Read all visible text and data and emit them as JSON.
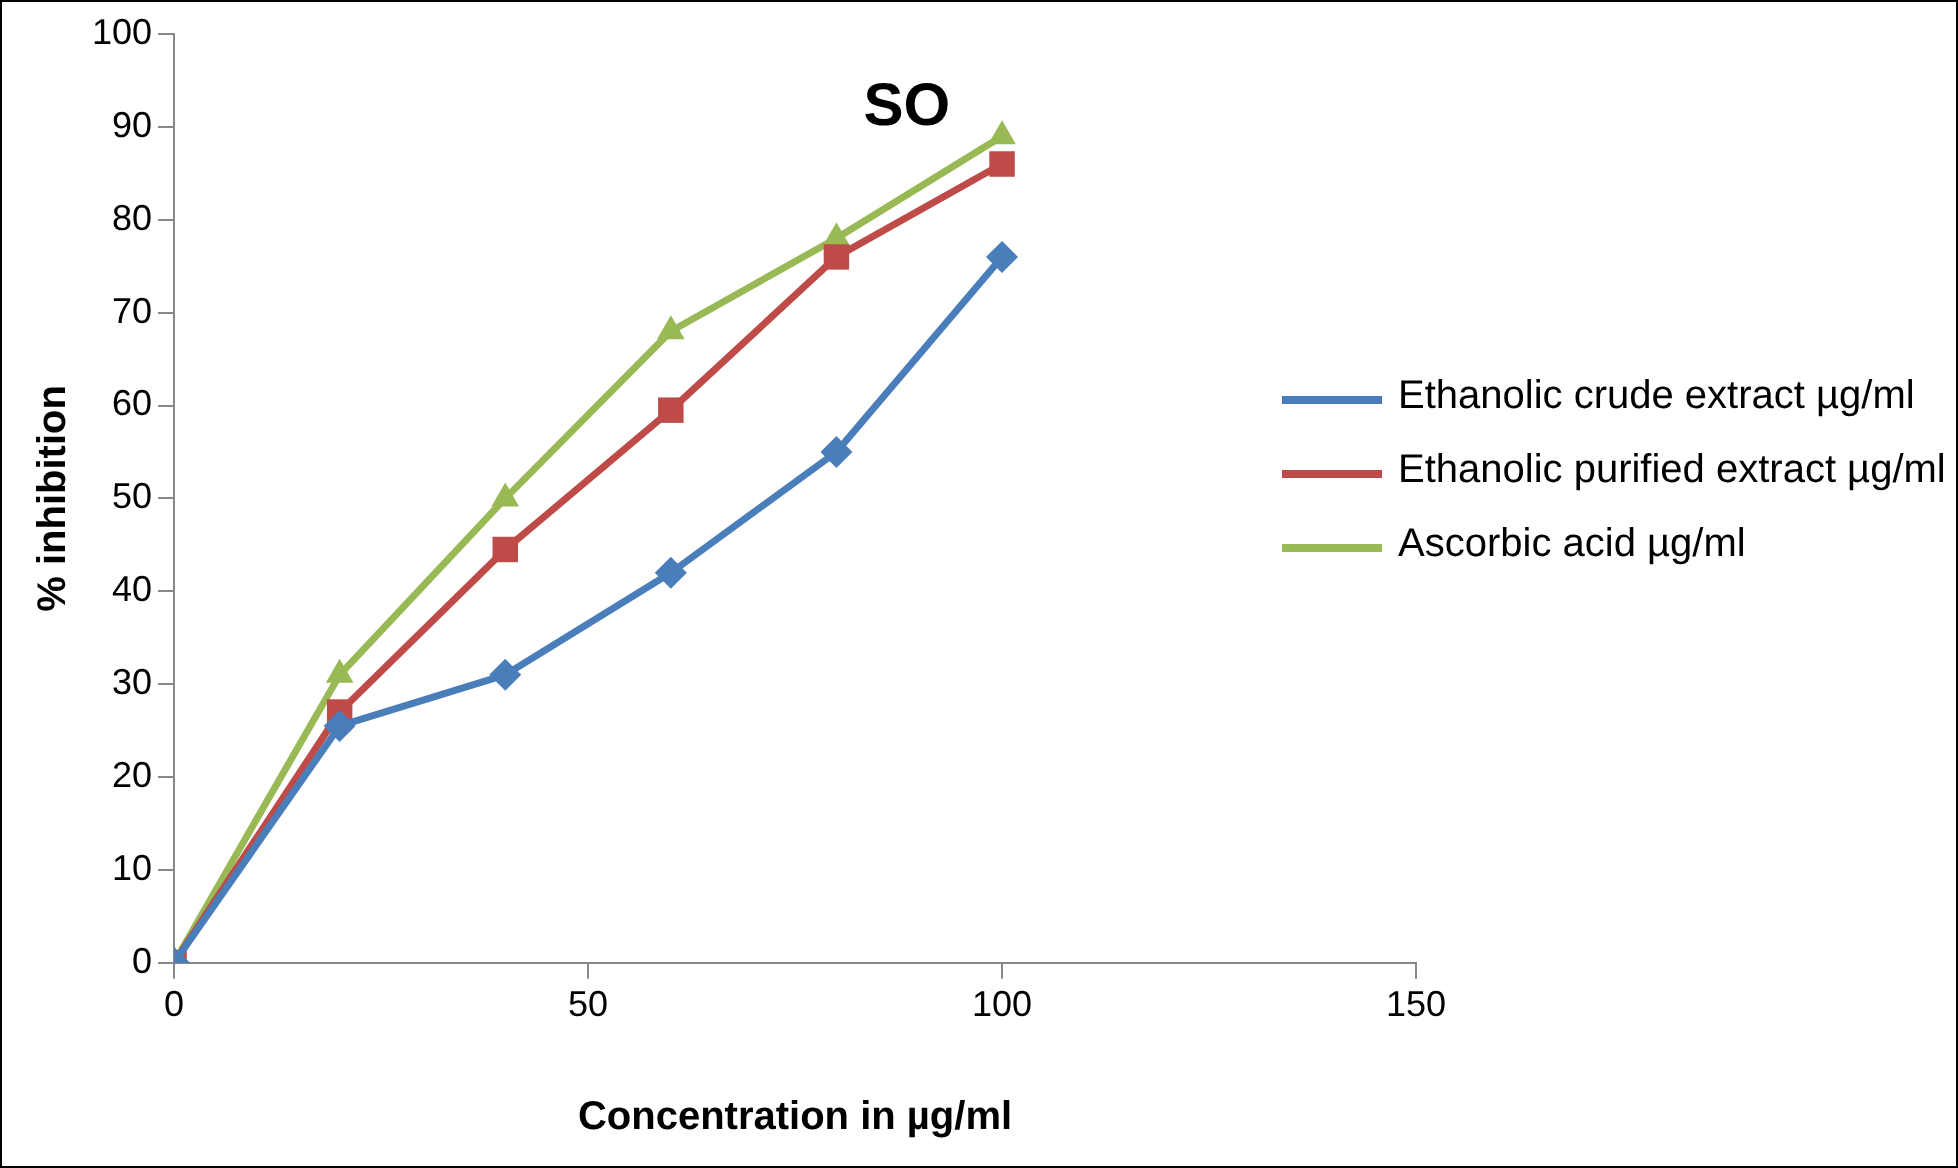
{
  "chart_data": {
    "type": "line",
    "title": "SO",
    "xlabel": "Concentration in µg/ml",
    "ylabel": "% inhibition",
    "x": [
      0,
      20,
      40,
      60,
      80,
      100
    ],
    "series": [
      {
        "name": "Ethanolic crude extract µg/ml",
        "color": "#4a7ebb",
        "marker": "diamond",
        "values": [
          0,
          25.5,
          31,
          42,
          55,
          76
        ]
      },
      {
        "name": "Ethanolic purified extract µg/ml",
        "color": "#be4b48",
        "marker": "square",
        "values": [
          0,
          27,
          44.5,
          59.5,
          76,
          86
        ]
      },
      {
        "name": "Ascorbic acid µg/ml",
        "color": "#98b954",
        "marker": "triangle",
        "values": [
          0,
          31,
          50,
          68,
          78,
          89
        ]
      }
    ],
    "xlim": [
      0,
      150
    ],
    "xticks": [
      0,
      50,
      100,
      150
    ],
    "ylim": [
      0,
      100
    ],
    "yticks": [
      0,
      10,
      20,
      30,
      40,
      50,
      60,
      70,
      80,
      90,
      100
    ],
    "grid": false,
    "legend": "right"
  }
}
